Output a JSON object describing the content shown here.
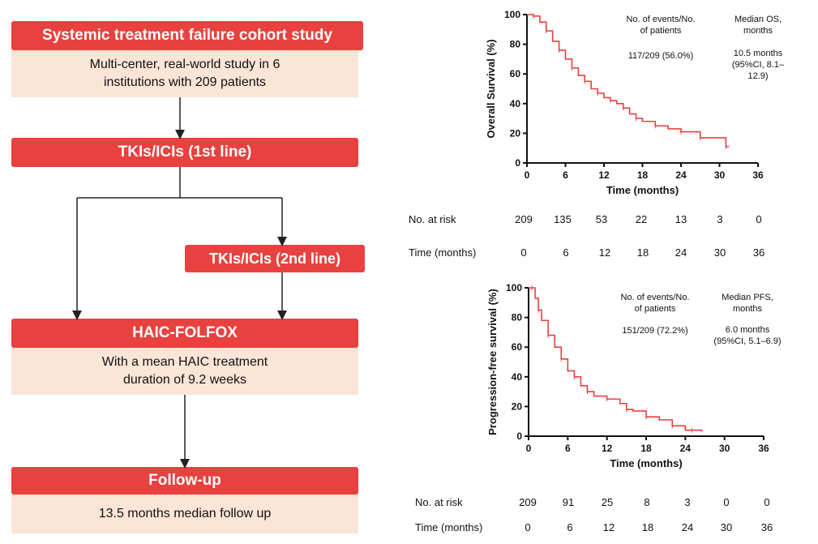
{
  "flow": {
    "box1_title": "Systemic treatment failure cohort study",
    "box1_desc_line1": "Multi-center, real-world study in 6",
    "box1_desc_line2": "institutions with 209 patients",
    "box2_title": "TKIs/ICIs (1st line)",
    "box3_title": "TKIs/ICIs (2nd line)",
    "box4_title": "HAIC-FOLFOX",
    "box4_desc_line1": "With a mean HAIC treatment",
    "box4_desc_line2": "duration of 9.2 weeks",
    "box5_title": "Follow-up",
    "box5_desc": "13.5 months median follow up"
  },
  "colors": {
    "accent_red": "#e8413f",
    "peach": "#fbe5d6",
    "curve": "#e8413f"
  },
  "chart_data": [
    {
      "type": "line",
      "ylabel": "Overall Survival (%)",
      "xlabel": "Time (months)",
      "xlim": [
        0,
        36
      ],
      "ylim": [
        0,
        100
      ],
      "x_ticks": [
        0,
        6,
        12,
        18,
        24,
        30,
        36
      ],
      "y_ticks": [
        0,
        20,
        40,
        60,
        80,
        100
      ],
      "annotation_events_header_line1": "No. of events/No.",
      "annotation_events_header_line2": "of patients",
      "annotation_events_value": "117/209 (56.0%)",
      "annotation_median_header_line1": "Median OS,",
      "annotation_median_header_line2": "months",
      "annotation_median_value_line1": "10.5 months",
      "annotation_median_value_line2": "(95%CI, 8.1–12.9)",
      "risk_label": "No. at risk",
      "risk_values": [
        "209",
        "135",
        "53",
        "22",
        "13",
        "3",
        "0"
      ],
      "time_label": "Time (months)",
      "time_values": [
        "0",
        "6",
        "12",
        "18",
        "24",
        "30",
        "36"
      ],
      "series": [
        {
          "x": [
            0,
            1,
            2,
            3,
            4,
            5,
            6,
            7,
            8,
            9,
            10,
            11,
            12,
            13,
            14,
            15,
            16,
            17,
            18,
            20,
            22,
            24,
            26,
            27,
            30,
            31,
            31.5
          ],
          "y": [
            100,
            99,
            95,
            89,
            82,
            76,
            70,
            64,
            59,
            55,
            50,
            47,
            44,
            42,
            40,
            37,
            33,
            30,
            28,
            25,
            23,
            21,
            21,
            17,
            17,
            11,
            11
          ]
        }
      ]
    },
    {
      "type": "line",
      "ylabel": "Progression-free survival (%)",
      "xlabel": "Time (months)",
      "xlim": [
        0,
        36
      ],
      "ylim": [
        0,
        100
      ],
      "x_ticks": [
        0,
        6,
        12,
        18,
        24,
        30,
        36
      ],
      "y_ticks": [
        0,
        20,
        40,
        60,
        80,
        100
      ],
      "annotation_events_header_line1": "No. of events/No.",
      "annotation_events_header_line2": "of patients",
      "annotation_events_value": "151/209 (72.2%)",
      "annotation_median_header_line1": "Median PFS,",
      "annotation_median_header_line2": "months",
      "annotation_median_value_line1": "6.0 months",
      "annotation_median_value_line2": "(95%CI, 5.1–6.9)",
      "risk_label": "No. at risk",
      "risk_values": [
        "209",
        "91",
        "25",
        "8",
        "3",
        "0",
        "0"
      ],
      "time_label": "Time (months)",
      "time_values": [
        "0",
        "6",
        "12",
        "18",
        "24",
        "30",
        "36"
      ],
      "series": [
        {
          "x": [
            0,
            0.5,
            1,
            1.5,
            2,
            3,
            4,
            5,
            6,
            7,
            8,
            9,
            10,
            12,
            14,
            15,
            16,
            18,
            20,
            22,
            24,
            25,
            26.5
          ],
          "y": [
            100,
            100,
            93,
            85,
            78,
            68,
            60,
            52,
            44,
            40,
            34,
            30,
            27,
            25,
            22,
            18,
            17,
            13,
            11,
            7,
            4,
            4,
            3
          ]
        }
      ]
    }
  ]
}
